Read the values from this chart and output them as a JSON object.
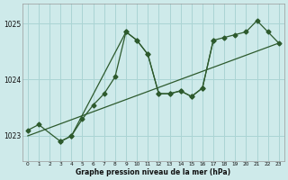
{
  "xlabel": "Graphe pression niveau de la mer (hPa)",
  "bg_color": "#ceeaea",
  "grid_color": "#aad4d4",
  "line_color": "#2d5a2d",
  "ylim": [
    1022.55,
    1025.35
  ],
  "xlim": [
    -0.5,
    23.5
  ],
  "yticks": [
    1023,
    1024,
    1025
  ],
  "xticks": [
    0,
    1,
    2,
    3,
    4,
    5,
    6,
    7,
    8,
    9,
    10,
    11,
    12,
    13,
    14,
    15,
    16,
    17,
    18,
    19,
    20,
    21,
    22,
    23
  ],
  "series1_x": [
    0,
    1,
    3,
    4,
    5,
    6,
    7,
    8,
    9,
    10,
    11,
    12,
    13,
    14,
    15,
    16,
    17,
    18,
    19,
    20,
    21,
    22,
    23
  ],
  "series1_y": [
    1023.1,
    1023.2,
    1022.9,
    1023.0,
    1023.3,
    1023.55,
    1023.75,
    1024.05,
    1024.85,
    1024.7,
    1024.45,
    1023.75,
    1023.75,
    1023.8,
    1023.7,
    1023.85,
    1024.7,
    1024.75,
    1024.8,
    1024.85,
    1025.05,
    1024.85,
    1024.65
  ],
  "trend_x": [
    0,
    23
  ],
  "trend_y": [
    1023.0,
    1024.65
  ],
  "series2_x": [
    3,
    4,
    9,
    10,
    11,
    12,
    13,
    14,
    15,
    16,
    17
  ],
  "series2_y": [
    1022.9,
    1023.0,
    1024.85,
    1024.7,
    1024.45,
    1023.75,
    1023.75,
    1023.8,
    1023.7,
    1023.85,
    1024.7
  ]
}
